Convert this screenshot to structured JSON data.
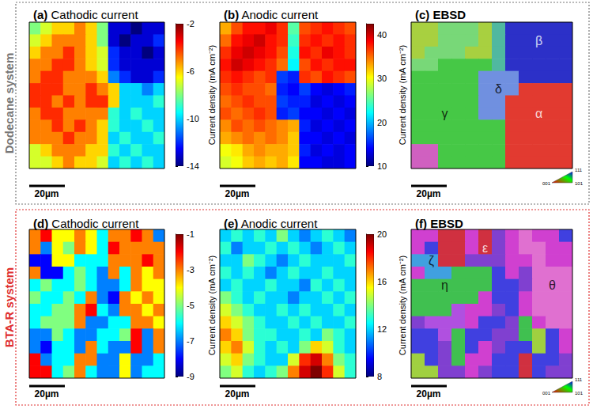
{
  "row_labels": [
    "Dodecane system",
    "BTA-R system"
  ],
  "chart_data": [
    {
      "type": "heatmap",
      "title": "(a) Cathodic current",
      "tick_labels": false,
      "scale_bar": "20µm",
      "colorbar": {
        "label": "Current density (mA cm⁻²)",
        "range": [
          -14,
          -2
        ],
        "ticks": [
          -14,
          -10,
          -6,
          -2
        ]
      },
      "values": [
        [
          -8,
          -7,
          -6,
          -6,
          -5,
          -6,
          -8,
          -13,
          -13,
          -14,
          -13,
          -13
        ],
        [
          -7,
          -6,
          -5,
          -5,
          -5,
          -6,
          -8,
          -13,
          -14,
          -13,
          -13,
          -12
        ],
        [
          -6,
          -5,
          -5,
          -4,
          -5,
          -6,
          -7,
          -12,
          -13,
          -13,
          -14,
          -13
        ],
        [
          -5,
          -5,
          -4,
          -4,
          -5,
          -6,
          -7,
          -12,
          -13,
          -13,
          -13,
          -13
        ],
        [
          -5,
          -4,
          -4,
          -5,
          -5,
          -5,
          -6,
          -11,
          -12,
          -13,
          -13,
          -12
        ],
        [
          -4,
          -4,
          -4,
          -5,
          -5,
          -4,
          -5,
          -6,
          -10,
          -10,
          -11,
          -10
        ],
        [
          -4,
          -4,
          -5,
          -4,
          -5,
          -4,
          -4,
          -6,
          -10,
          -10,
          -10,
          -9
        ],
        [
          -5,
          -4,
          -4,
          -5,
          -5,
          -5,
          -5,
          -9,
          -10,
          -9,
          -10,
          -10
        ],
        [
          -5,
          -5,
          -4,
          -5,
          -4,
          -5,
          -6,
          -9,
          -10,
          -10,
          -9,
          -10
        ],
        [
          -5,
          -5,
          -5,
          -4,
          -5,
          -5,
          -6,
          -10,
          -9,
          -10,
          -10,
          -9
        ],
        [
          -7,
          -6,
          -5,
          -5,
          -5,
          -6,
          -6,
          -9,
          -10,
          -9,
          -10,
          -10
        ],
        [
          -7,
          -7,
          -6,
          -5,
          -6,
          -6,
          -7,
          -10,
          -9,
          -10,
          -9,
          -10
        ]
      ]
    },
    {
      "type": "heatmap",
      "title": "(b) Anodic current",
      "tick_labels": false,
      "scale_bar": "20µm",
      "colorbar": {
        "label": "Current density (mA cm⁻²)",
        "range": [
          10,
          42.5
        ],
        "ticks": [
          10,
          20,
          30,
          40
        ]
      },
      "values": [
        [
          33,
          36,
          38,
          38,
          39,
          37,
          25,
          36,
          37,
          38,
          37,
          36
        ],
        [
          35,
          38,
          39,
          40,
          38,
          37,
          24,
          37,
          38,
          37,
          38,
          37
        ],
        [
          37,
          39,
          40,
          39,
          38,
          36,
          23,
          38,
          37,
          39,
          38,
          37
        ],
        [
          38,
          40,
          39,
          38,
          37,
          35,
          22,
          36,
          38,
          37,
          38,
          38
        ],
        [
          37,
          38,
          37,
          36,
          37,
          16,
          15,
          37,
          36,
          38,
          37,
          36
        ],
        [
          36,
          37,
          36,
          36,
          35,
          15,
          14,
          16,
          14,
          13,
          14,
          15
        ],
        [
          35,
          36,
          37,
          36,
          36,
          16,
          15,
          15,
          13,
          14,
          13,
          14
        ],
        [
          36,
          35,
          36,
          37,
          36,
          15,
          16,
          14,
          14,
          13,
          14,
          13
        ],
        [
          34,
          36,
          35,
          36,
          35,
          34,
          33,
          15,
          13,
          14,
          13,
          14
        ],
        [
          33,
          34,
          35,
          34,
          35,
          34,
          32,
          14,
          14,
          13,
          14,
          13
        ],
        [
          30,
          31,
          33,
          34,
          33,
          33,
          32,
          15,
          13,
          14,
          13,
          14
        ],
        [
          29,
          30,
          32,
          33,
          32,
          33,
          31,
          14,
          14,
          13,
          13,
          14
        ]
      ]
    },
    {
      "type": "map",
      "title": "(c) EBSD",
      "tick_labels": false,
      "scale_bar": "20µm",
      "ipf_key": [
        "001",
        "101",
        "111"
      ],
      "labels": [
        {
          "text": "β",
          "row": 1,
          "col": 9
        },
        {
          "text": "δ",
          "row": 5,
          "col": 6
        },
        {
          "text": "γ",
          "row": 7,
          "col": 2
        },
        {
          "text": "α",
          "row": 7,
          "col": 9
        }
      ],
      "colors": [
        [
          "#a8d040",
          "#a8d040",
          "#78d878",
          "#78d878",
          "#78d878",
          "#a8d040",
          "#50b8a0",
          "#2c30c8",
          "#2c30c8",
          "#2c30c8",
          "#2c30c8",
          "#2c30c8"
        ],
        [
          "#a8d040",
          "#a8d040",
          "#78d878",
          "#78d878",
          "#78d878",
          "#a8d040",
          "#50b8a0",
          "#2c30c8",
          "#2c30c8",
          "#2c30c8",
          "#2c30c8",
          "#2c30c8"
        ],
        [
          "#a8d040",
          "#78d878",
          "#78d878",
          "#78d878",
          "#a8d040",
          "#a8d040",
          "#50b8a0",
          "#2c30c8",
          "#2c30c8",
          "#2c30c8",
          "#2c30c8",
          "#2c30c8"
        ],
        [
          "#78d878",
          "#78d878",
          "#46c846",
          "#46c846",
          "#46c846",
          "#46c846",
          "#50b8a0",
          "#2c30c8",
          "#2c30c8",
          "#2c30c8",
          "#2c30c8",
          "#2c30c8"
        ],
        [
          "#46c846",
          "#46c846",
          "#46c846",
          "#46c846",
          "#46c846",
          "#7090e0",
          "#7090e0",
          "#7090e0",
          "#2c30c8",
          "#2c30c8",
          "#2c30c8",
          "#2c30c8"
        ],
        [
          "#46c846",
          "#46c846",
          "#46c846",
          "#46c846",
          "#46c846",
          "#7090e0",
          "#7090e0",
          "#7090e0",
          "#e23a30",
          "#e23a30",
          "#e23a30",
          "#e23a30"
        ],
        [
          "#46c846",
          "#46c846",
          "#46c846",
          "#46c846",
          "#46c846",
          "#7090e0",
          "#7090e0",
          "#e23a30",
          "#e23a30",
          "#e23a30",
          "#e23a30",
          "#e23a30"
        ],
        [
          "#46c846",
          "#46c846",
          "#46c846",
          "#46c846",
          "#46c846",
          "#7090e0",
          "#7090e0",
          "#e23a30",
          "#e23a30",
          "#e23a30",
          "#e23a30",
          "#e23a30"
        ],
        [
          "#46c846",
          "#46c846",
          "#46c846",
          "#46c846",
          "#46c846",
          "#46c846",
          "#46c846",
          "#e23a30",
          "#e23a30",
          "#e23a30",
          "#e23a30",
          "#e23a30"
        ],
        [
          "#46c846",
          "#46c846",
          "#46c846",
          "#46c846",
          "#46c846",
          "#46c846",
          "#46c846",
          "#e23a30",
          "#e23a30",
          "#e23a30",
          "#e23a30",
          "#e23a30"
        ],
        [
          "#d060c0",
          "#d060c0",
          "#46c846",
          "#46c846",
          "#46c846",
          "#46c846",
          "#46c846",
          "#e23a30",
          "#e23a30",
          "#e23a30",
          "#e23a30",
          "#e23a30"
        ],
        [
          "#d060c0",
          "#d060c0",
          "#46c846",
          "#46c846",
          "#46c846",
          "#46c846",
          "#46c846",
          "#e23a30",
          "#e23a30",
          "#e23a30",
          "#e23a30",
          "#e23a30"
        ]
      ]
    },
    {
      "type": "heatmap",
      "title": "(d) Cathodic current",
      "tick_labels": false,
      "scale_bar": "20µm",
      "colorbar": {
        "label": "Current density (mA cm⁻²)",
        "range": [
          -9,
          -1
        ],
        "ticks": [
          -9,
          -7,
          -5,
          -3,
          -1
        ]
      },
      "values": [
        [
          -3,
          -2,
          -4,
          -4,
          -3,
          -4,
          -6,
          -3,
          -3,
          -2,
          -3,
          -7
        ],
        [
          -3,
          -7,
          -4,
          -5,
          -3,
          -4,
          -6,
          -2,
          -3,
          -3,
          -3,
          -3
        ],
        [
          -8,
          -8,
          -4,
          -4,
          -6,
          -6,
          -6,
          -3,
          -3,
          -3,
          -2,
          -3
        ],
        [
          -3,
          -8,
          -8,
          -6,
          -5,
          -6,
          -7,
          -3,
          -6,
          -3,
          -4,
          -3
        ],
        [
          -6,
          -5,
          -6,
          -6,
          -5,
          -6,
          -7,
          -7,
          -6,
          -3,
          -4,
          -4
        ],
        [
          -5,
          -6,
          -6,
          -5,
          -6,
          -3,
          -7,
          -8,
          -3,
          -4,
          -3,
          -4
        ],
        [
          -6,
          -6,
          -5,
          -5,
          -3,
          -2,
          -6,
          -7,
          -3,
          -3,
          -4,
          -3
        ],
        [
          -6,
          -5,
          -5,
          -5,
          -3,
          -7,
          -7,
          -6,
          -6,
          -3,
          -3,
          -4
        ],
        [
          -7,
          -7,
          -5,
          -6,
          -7,
          -7,
          -6,
          -6,
          -5,
          -2,
          -7,
          -3
        ],
        [
          -7,
          -8,
          -6,
          -6,
          -7,
          -3,
          -6,
          -7,
          -7,
          -2,
          -7,
          -3
        ],
        [
          -2,
          -7,
          -6,
          -6,
          -3,
          -3,
          -7,
          -7,
          -4,
          -7,
          -7,
          -6
        ],
        [
          -2,
          -2,
          -6,
          -5,
          -3,
          -6,
          -7,
          -7,
          -4,
          -7,
          -6,
          -6
        ]
      ]
    },
    {
      "type": "heatmap",
      "title": "(e) Anodic current",
      "tick_labels": false,
      "scale_bar": "20µm",
      "colorbar": {
        "label": "Current density (mA cm⁻²)",
        "range": [
          8,
          20
        ],
        "ticks": [
          8,
          12,
          16,
          20
        ]
      },
      "values": [
        [
          12,
          13,
          12,
          13,
          12,
          14,
          12,
          11,
          12,
          13,
          12,
          11
        ],
        [
          13,
          11,
          12,
          12,
          13,
          12,
          13,
          12,
          11,
          12,
          13,
          12
        ],
        [
          12,
          12,
          14,
          13,
          12,
          11,
          12,
          13,
          12,
          12,
          12,
          13
        ],
        [
          13,
          12,
          13,
          12,
          11,
          12,
          13,
          12,
          12,
          13,
          12,
          12
        ],
        [
          12,
          13,
          12,
          12,
          13,
          12,
          12,
          11,
          13,
          12,
          13,
          12
        ],
        [
          14,
          13,
          12,
          13,
          12,
          12,
          11,
          12,
          12,
          13,
          12,
          13
        ],
        [
          15,
          14,
          13,
          12,
          12,
          13,
          12,
          13,
          12,
          12,
          13,
          12
        ],
        [
          16,
          15,
          14,
          13,
          12,
          12,
          13,
          12,
          13,
          12,
          12,
          13
        ],
        [
          17,
          16,
          14,
          13,
          13,
          12,
          12,
          13,
          12,
          14,
          13,
          12
        ],
        [
          16,
          17,
          15,
          13,
          12,
          13,
          12,
          14,
          16,
          15,
          13,
          12
        ],
        [
          15,
          16,
          14,
          13,
          12,
          12,
          15,
          18,
          19,
          17,
          14,
          13
        ],
        [
          14,
          15,
          13,
          12,
          13,
          14,
          17,
          19,
          20,
          18,
          15,
          13
        ]
      ]
    },
    {
      "type": "map",
      "title": "(f) EBSD",
      "tick_labels": false,
      "scale_bar": "20µm",
      "ipf_key": [
        "001",
        "101",
        "111"
      ],
      "labels": [
        {
          "text": "ε",
          "row": 1,
          "col": 5
        },
        {
          "text": "ζ",
          "row": 2,
          "col": 1
        },
        {
          "text": "η",
          "row": 4,
          "col": 2
        },
        {
          "text": "θ",
          "row": 4,
          "col": 10
        }
      ],
      "colors": [
        [
          "#d040d0",
          "#d040d0",
          "#d03040",
          "#d03040",
          "#d040d0",
          "#d03040",
          "#8040d0",
          "#d040d0",
          "#e070d0",
          "#d040d0",
          "#d040d0",
          "#4040e0"
        ],
        [
          "#d040d0",
          "#4040e0",
          "#d03040",
          "#d03040",
          "#d040d0",
          "#d03040",
          "#8040d0",
          "#d040d0",
          "#e070d0",
          "#e070d0",
          "#d040d0",
          "#d040d0"
        ],
        [
          "#40a0e0",
          "#40a0e0",
          "#d03040",
          "#d03040",
          "#8040d0",
          "#8040d0",
          "#8040d0",
          "#d040d0",
          "#d040d0",
          "#e070d0",
          "#d040d0",
          "#d040d0"
        ],
        [
          "#d040d0",
          "#40a0e0",
          "#40a0e0",
          "#40c050",
          "#40c050",
          "#40c050",
          "#4040e0",
          "#d040d0",
          "#8040d0",
          "#e070d0",
          "#e070d0",
          "#e070d0"
        ],
        [
          "#40c050",
          "#40c050",
          "#40c050",
          "#40c050",
          "#40c050",
          "#40c050",
          "#4040e0",
          "#4040e0",
          "#8040d0",
          "#e070d0",
          "#e070d0",
          "#e070d0"
        ],
        [
          "#40c050",
          "#40c050",
          "#40c050",
          "#40c050",
          "#40c050",
          "#d040d0",
          "#4040e0",
          "#4040e0",
          "#d040d0",
          "#e070d0",
          "#e070d0",
          "#e070d0"
        ],
        [
          "#40c050",
          "#40c050",
          "#40c050",
          "#b050e0",
          "#d040d0",
          "#d040d0",
          "#8040d0",
          "#4040e0",
          "#d040d0",
          "#e070d0",
          "#e070d0",
          "#e070d0"
        ],
        [
          "#8040d0",
          "#b050e0",
          "#b050e0",
          "#b050e0",
          "#d040d0",
          "#4040e0",
          "#4040e0",
          "#8040d0",
          "#40c050",
          "#d040d0",
          "#e070d0",
          "#e070d0"
        ],
        [
          "#4040e0",
          "#4040e0",
          "#b050e0",
          "#40c050",
          "#4040e0",
          "#4040e0",
          "#8040d0",
          "#8040d0",
          "#40c050",
          "#a0d040",
          "#4040e0",
          "#d040d0"
        ],
        [
          "#4040e0",
          "#4040e0",
          "#8040d0",
          "#40c050",
          "#4040e0",
          "#d040d0",
          "#8040d0",
          "#4040e0",
          "#4040e0",
          "#a0d040",
          "#4040e0",
          "#d040d0"
        ],
        [
          "#a0d040",
          "#4040e0",
          "#8040d0",
          "#40c050",
          "#d040d0",
          "#d040d0",
          "#4040e0",
          "#4040e0",
          "#d03040",
          "#4040e0",
          "#4040e0",
          "#8040d0"
        ],
        [
          "#a0d040",
          "#a0d040",
          "#8040d0",
          "#8040d0",
          "#d040d0",
          "#8040d0",
          "#4040e0",
          "#4040e0",
          "#d03040",
          "#4040e0",
          "#8040d0",
          "#8040d0"
        ]
      ]
    }
  ]
}
